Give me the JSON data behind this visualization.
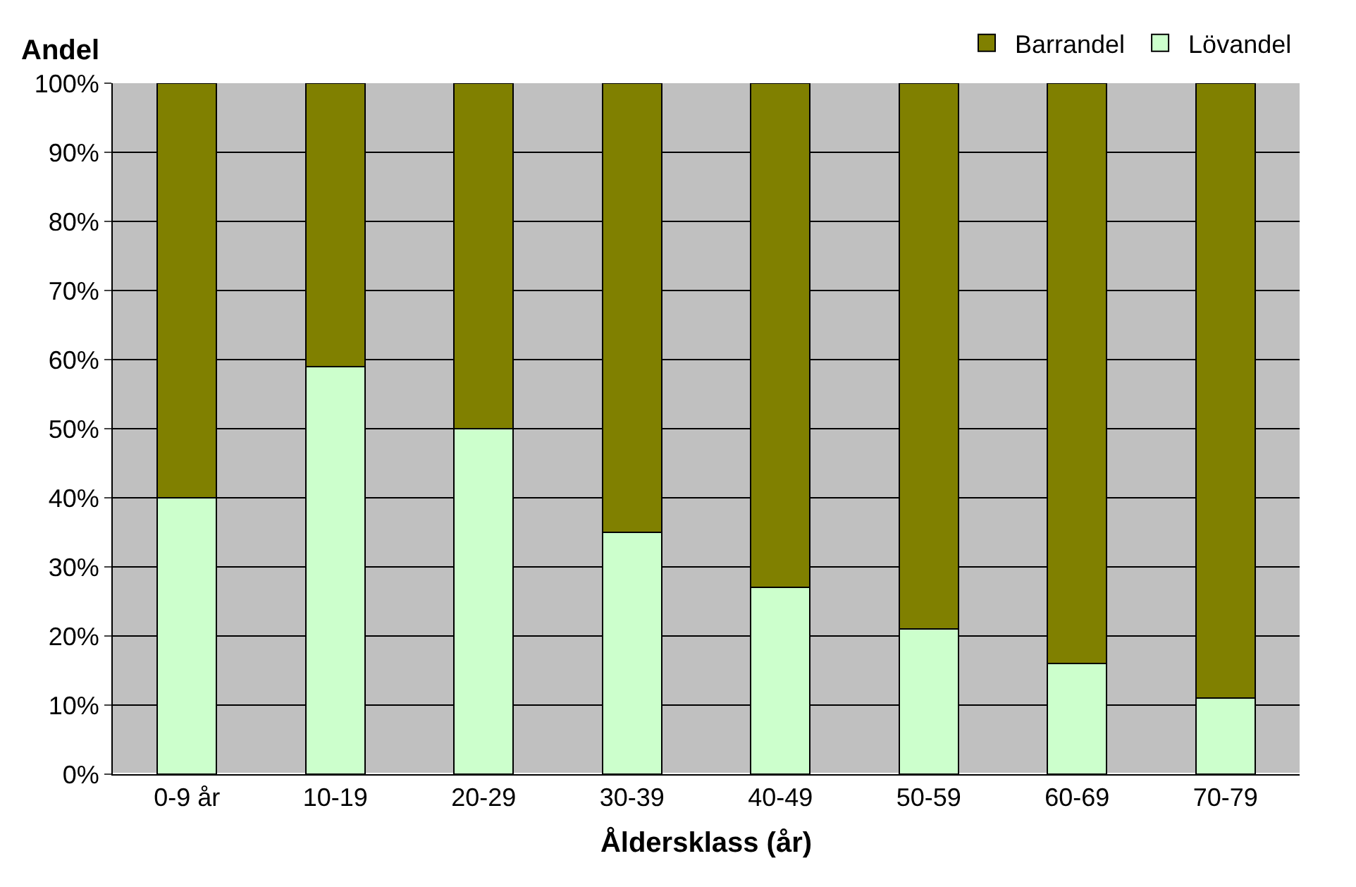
{
  "chart_data": {
    "type": "bar",
    "stacked": true,
    "ylabel": "Andel",
    "xlabel": "Åldersklass (år)",
    "categories": [
      "0-9 år",
      "10-19",
      "20-29",
      "30-39",
      "40-49",
      "50-59",
      "60-69",
      "70-79"
    ],
    "series": [
      {
        "name": "Lövandel",
        "color": "#ccffcc",
        "values": [
          40,
          59,
          50,
          35,
          27,
          21,
          16,
          11
        ]
      },
      {
        "name": "Barrandel",
        "color": "#808000",
        "values": [
          60,
          41,
          50,
          65,
          73,
          79,
          84,
          89
        ]
      }
    ],
    "ylim": [
      0,
      100
    ],
    "yticks": [
      {
        "value": 0,
        "label": "0%"
      },
      {
        "value": 10,
        "label": "10%"
      },
      {
        "value": 20,
        "label": "20%"
      },
      {
        "value": 30,
        "label": "30%"
      },
      {
        "value": 40,
        "label": "40%"
      },
      {
        "value": 50,
        "label": "50%"
      },
      {
        "value": 60,
        "label": "60%"
      },
      {
        "value": 70,
        "label": "70%"
      },
      {
        "value": 80,
        "label": "80%"
      },
      {
        "value": 90,
        "label": "90%"
      },
      {
        "value": 100,
        "label": "100%"
      }
    ],
    "grid": "y",
    "legend": "top right"
  }
}
